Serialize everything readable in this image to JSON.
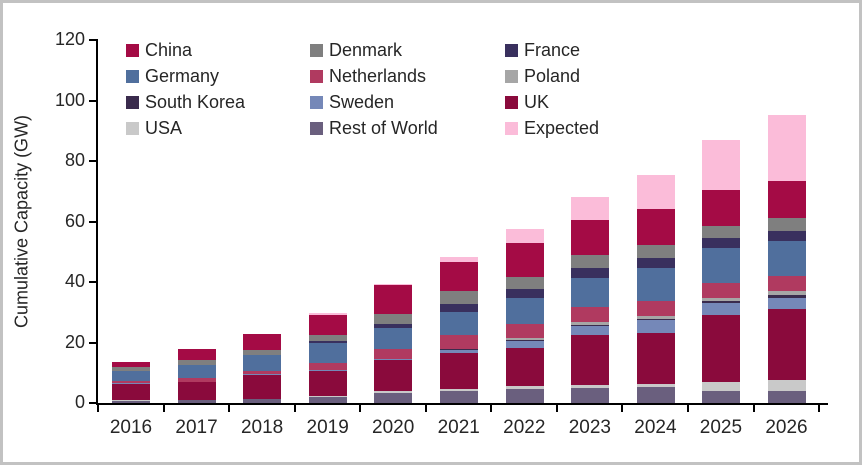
{
  "figure": {
    "frame_color": "#c2c2c2",
    "background": "#ffffff",
    "axis_color": "#000000",
    "text_color": "#262626"
  },
  "chart_data": {
    "type": "bar",
    "stacked": true,
    "title": "",
    "xlabel": "",
    "ylabel": "Cumulative Capacity (GW)",
    "ylim": [
      0,
      120
    ],
    "yticks": [
      0,
      20,
      40,
      60,
      80,
      100,
      120
    ],
    "grid": false,
    "legend_position": "top-inside, 3 columns, row-major",
    "categories": [
      "2016",
      "2017",
      "2018",
      "2019",
      "2020",
      "2021",
      "2022",
      "2023",
      "2024",
      "2025",
      "2026"
    ],
    "series": [
      {
        "name": "China",
        "color": "#A40B45",
        "values": [
          1.8,
          3.5,
          5.0,
          6.6,
          9.6,
          9.9,
          11.2,
          11.6,
          12.2,
          12.1,
          12.1
        ]
      },
      {
        "name": "Denmark",
        "color": "#7F7F7F",
        "values": [
          1.3,
          1.7,
          1.9,
          2.2,
          3.3,
          4.0,
          4.0,
          4.3,
          4.3,
          4.0,
          4.2
        ]
      },
      {
        "name": "France",
        "color": "#39305E",
        "values": [
          0,
          0,
          0,
          0.5,
          1.3,
          2.9,
          2.9,
          3.0,
          3.0,
          3.3,
          3.3
        ]
      },
      {
        "name": "Germany",
        "color": "#506F9D",
        "values": [
          3.4,
          4.4,
          5.1,
          6.6,
          6.9,
          7.5,
          8.6,
          9.9,
          11.0,
          11.6,
          11.8
        ]
      },
      {
        "name": "Netherlands",
        "color": "#B03A60",
        "values": [
          0.7,
          1.1,
          1.1,
          2.4,
          3.6,
          4.6,
          4.6,
          4.7,
          5.0,
          5.0,
          5.0
        ]
      },
      {
        "name": "Poland",
        "color": "#A6A6A6",
        "values": [
          0,
          0,
          0,
          0,
          0,
          0.2,
          0.9,
          1.0,
          1.0,
          0.9,
          1.3
        ]
      },
      {
        "name": "South Korea",
        "color": "#3A2B4D",
        "values": [
          0,
          0,
          0,
          0,
          0,
          0.1,
          0.2,
          0.4,
          0.5,
          0.6,
          0.8
        ]
      },
      {
        "name": "Sweden",
        "color": "#7588B8",
        "values": [
          0.2,
          0.2,
          0.2,
          0.3,
          0.3,
          1.0,
          2.4,
          3.0,
          4.0,
          4.0,
          3.8
        ]
      },
      {
        "name": "UK",
        "color": "#8A0A3C",
        "values": [
          5.4,
          5.9,
          8.0,
          8.3,
          10.2,
          12.0,
          12.6,
          16.5,
          17.0,
          22.0,
          23.4
        ]
      },
      {
        "name": "USA",
        "color": "#C9C9C9",
        "values": [
          0.1,
          0.1,
          0.1,
          0.2,
          0.7,
          0.7,
          0.9,
          1.0,
          1.1,
          3.1,
          3.6
        ]
      },
      {
        "name": "Rest of World",
        "color": "#6A5F7E",
        "values": [
          0.8,
          0.9,
          1.3,
          2.1,
          3.2,
          3.9,
          4.6,
          5.0,
          5.2,
          4.0,
          4.0
        ]
      },
      {
        "name": "Expected",
        "color": "#FBBCD9",
        "values": [
          0,
          0,
          0,
          0.6,
          0.3,
          1.6,
          4.6,
          7.9,
          11.2,
          16.4,
          22.0
        ]
      }
    ],
    "stack_order_bottom_to_top": [
      "Rest of World",
      "USA",
      "UK",
      "Sweden",
      "South Korea",
      "Poland",
      "Netherlands",
      "Germany",
      "France",
      "Denmark",
      "China",
      "Expected"
    ],
    "totals_by_year": [
      13.7,
      17.8,
      22.7,
      29.8,
      39.4,
      48.4,
      57.5,
      68.3,
      75.5,
      87.0,
      95.3
    ]
  }
}
